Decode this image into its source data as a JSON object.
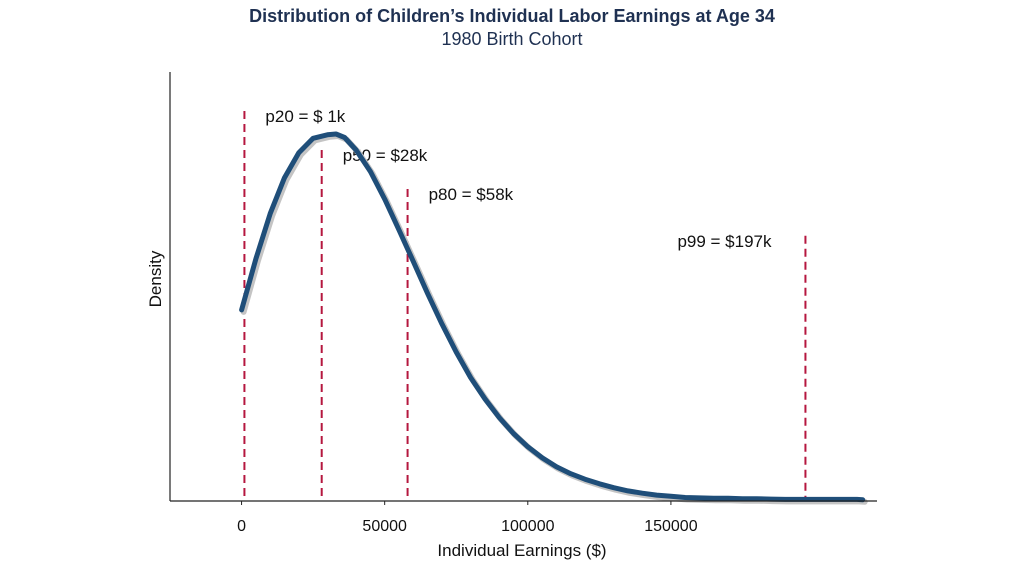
{
  "chart_data": {
    "type": "line",
    "title": "Distribution of Children’s Individual Labor Earnings at Age 34",
    "subtitle": "1980 Birth Cohort",
    "xlabel": "Individual Earnings ($)",
    "ylabel": "Density",
    "xlim": [
      -25000,
      222000
    ],
    "ylim": [
      0,
      1.1
    ],
    "xticks": [
      {
        "value": 0,
        "label": "0"
      },
      {
        "value": 50000,
        "label": "50000"
      },
      {
        "value": 100000,
        "label": "100000"
      },
      {
        "value": 150000,
        "label": "150000"
      }
    ],
    "grid": false,
    "legend": "none",
    "series": [
      {
        "x": [
          0,
          5000,
          10000,
          15000,
          20000,
          25000,
          30000,
          33000,
          36000,
          40000,
          45000,
          50000,
          55000,
          60000,
          65000,
          70000,
          75000,
          80000,
          85000,
          90000,
          95000,
          100000,
          105000,
          110000,
          115000,
          120000,
          125000,
          130000,
          135000,
          140000,
          145000,
          150000,
          155000,
          160000,
          165000,
          170000,
          175000,
          180000,
          185000,
          190000,
          195000,
          200000,
          205000,
          210000,
          215000,
          217000
        ],
        "y": [
          0.49,
          0.621,
          0.737,
          0.829,
          0.893,
          0.93,
          0.939,
          0.941,
          0.932,
          0.9,
          0.845,
          0.774,
          0.695,
          0.614,
          0.532,
          0.454,
          0.382,
          0.317,
          0.262,
          0.214,
          0.173,
          0.139,
          0.111,
          0.088,
          0.07,
          0.056,
          0.044,
          0.034,
          0.026,
          0.02,
          0.015,
          0.012,
          0.009,
          0.008,
          0.007,
          0.007,
          0.006,
          0.006,
          0.005,
          0.004,
          0.004,
          0.004,
          0.004,
          0.004,
          0.004,
          0.003
        ],
        "color": "#1f4e79"
      }
    ],
    "percentiles": [
      {
        "label": "p20 = $ 1k",
        "value": 1000,
        "line_top": 1.0
      },
      {
        "label": "p50 = $28k",
        "value": 28000,
        "line_top": 0.9
      },
      {
        "label": "p80 = $58k",
        "value": 58000,
        "line_top": 0.8
      },
      {
        "label": "p99 = $197k",
        "value": 197000,
        "line_top": 0.68
      }
    ],
    "percentile_color": "#b5173f"
  }
}
